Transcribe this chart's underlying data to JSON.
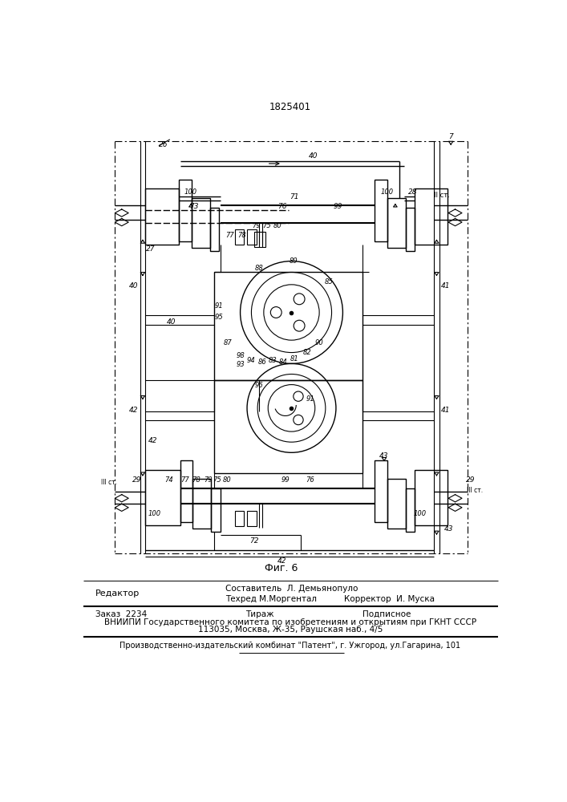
{
  "patent_number": "1825401",
  "figure_label": "Фиг. 6",
  "editor_line": "Редактор",
  "composer": "Составитель  Л. Демьянопуло",
  "techred": "Техред М.Моргентал",
  "corrector": "Корректор  И. Муска",
  "order": "Заказ  2234",
  "tirazh": "Тираж",
  "podpisnoe": "Подписное",
  "vniiipi_line1": "ВНИИПИ Государственного комитета по изобретениям и открытиям при ГКНТ СССР",
  "vniiipi_line2": "113035, Москва, Ж-35, Раушская наб., 4/5",
  "publisher": "Производственно-издательский комбинат \"Патент\", г. Ужгород, ул.Гагарина, 101",
  "bg_color": "#ffffff",
  "line_color": "#000000"
}
